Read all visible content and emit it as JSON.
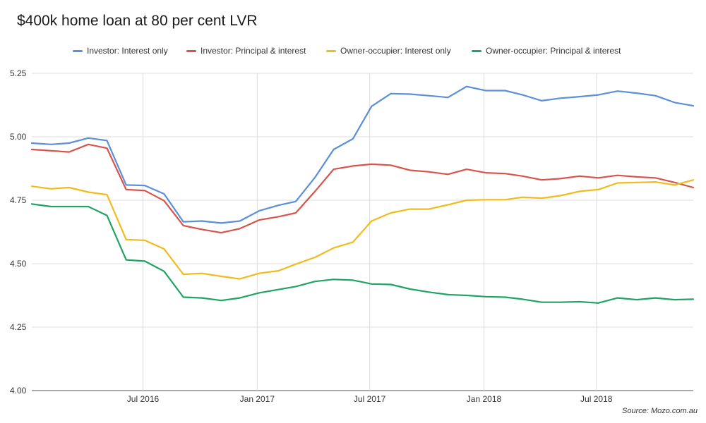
{
  "chart_data": {
    "type": "line",
    "title": "$400k home loan at 80 per cent LVR",
    "source": "Source: Mozo.com.au",
    "legend_position": "top",
    "grid": true,
    "ylim": [
      4.0,
      5.25
    ],
    "y_ticks": [
      "4.00",
      "4.25",
      "4.50",
      "4.75",
      "5.00",
      "5.25"
    ],
    "x_ticks": [
      "Jul 2016",
      "Jan 2017",
      "Jul 2017",
      "Jan 2018",
      "Jul 2018"
    ],
    "x": [
      "2016-01-04",
      "2016-02-04",
      "2016-03-04",
      "2016-04-04",
      "2016-05-04",
      "2016-06-04",
      "2016-07-04",
      "2016-08-04",
      "2016-09-04",
      "2016-10-04",
      "2016-11-04",
      "2016-12-04",
      "2017-01-04",
      "2017-02-04",
      "2017-03-04",
      "2017-04-04",
      "2017-05-04",
      "2017-06-04",
      "2017-07-04",
      "2017-08-04",
      "2017-09-04",
      "2017-10-04",
      "2017-11-04",
      "2017-12-04",
      "2018-01-04",
      "2018-02-04",
      "2018-03-04",
      "2018-04-04",
      "2018-05-04",
      "2018-06-04",
      "2018-07-04",
      "2018-08-04",
      "2018-09-04",
      "2018-10-04",
      "2018-11-04",
      "2018-12-04"
    ],
    "series": [
      {
        "name": "Investor: Interest only",
        "color": "#5b8fd9",
        "values": [
          4.975,
          4.97,
          4.975,
          4.995,
          4.985,
          4.81,
          4.808,
          4.775,
          4.665,
          4.668,
          4.66,
          4.668,
          4.708,
          4.73,
          4.745,
          4.84,
          4.95,
          4.992,
          5.12,
          5.17,
          5.168,
          5.162,
          5.155,
          5.198,
          5.182,
          5.182,
          5.165,
          5.142,
          5.152,
          5.158,
          5.165,
          5.18,
          5.172,
          5.162,
          5.135,
          5.122
        ]
      },
      {
        "name": "Investor: Principal & interest",
        "color": "#d9534a",
        "values": [
          4.95,
          4.945,
          4.94,
          4.97,
          4.955,
          4.792,
          4.788,
          4.748,
          4.65,
          4.635,
          4.622,
          4.638,
          4.672,
          4.685,
          4.7,
          4.785,
          4.872,
          4.885,
          4.892,
          4.888,
          4.868,
          4.862,
          4.852,
          4.872,
          4.858,
          4.855,
          4.845,
          4.83,
          4.835,
          4.845,
          4.838,
          4.848,
          4.842,
          4.838,
          4.82,
          4.8
        ]
      },
      {
        "name": "Owner-occupier: Interest only",
        "color": "#f2bb1c",
        "values": [
          4.805,
          4.795,
          4.8,
          4.782,
          4.772,
          4.595,
          4.592,
          4.558,
          4.458,
          4.462,
          4.45,
          4.44,
          4.462,
          4.472,
          4.498,
          4.525,
          4.562,
          4.585,
          4.668,
          4.7,
          4.715,
          4.715,
          4.732,
          4.75,
          4.752,
          4.752,
          4.762,
          4.758,
          4.768,
          4.785,
          4.792,
          4.818,
          4.82,
          4.822,
          4.81,
          4.83
        ]
      },
      {
        "name": "Owner-occupier: Principal & interest",
        "color": "#1fa463",
        "values": [
          4.735,
          4.725,
          4.725,
          4.725,
          4.69,
          4.515,
          4.51,
          4.47,
          4.368,
          4.365,
          4.355,
          4.365,
          4.385,
          4.398,
          4.41,
          4.43,
          4.438,
          4.435,
          4.42,
          4.418,
          4.4,
          4.388,
          4.378,
          4.375,
          4.37,
          4.368,
          4.36,
          4.348,
          4.348,
          4.35,
          4.345,
          4.365,
          4.358,
          4.365,
          4.358,
          4.36
        ]
      }
    ]
  }
}
